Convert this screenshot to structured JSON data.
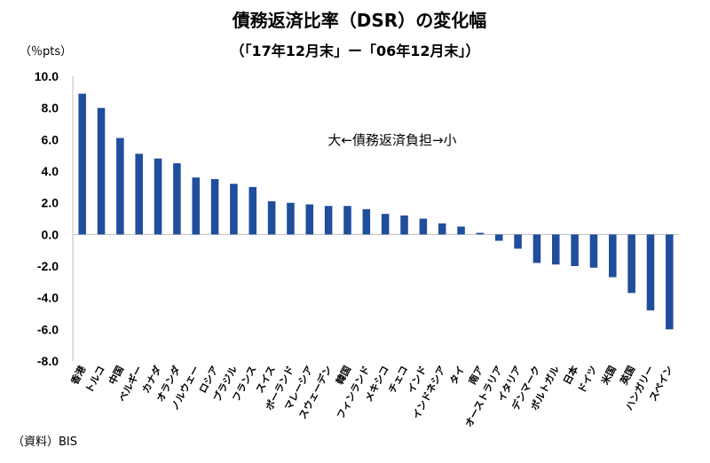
{
  "chart_data": {
    "type": "bar",
    "title": "債務返済比率（DSR）の変化幅",
    "subtitle": "（「17年12月末」ー「06年12月末」）",
    "unit_label": "（％pts）",
    "annotation": "大←債務返済負担→小",
    "source": "（資料）BIS",
    "ylim": [
      -8,
      10
    ],
    "yticks": [
      "10.0",
      "8.0",
      "6.0",
      "4.0",
      "2.0",
      "0.0",
      "-2.0",
      "-4.0",
      "-6.0",
      "-8.0"
    ],
    "grid": false,
    "bar_color": "#1f4e9c",
    "categories": [
      "香港",
      "トルコ",
      "中国",
      "ベルギー",
      "カナダ",
      "オランダ",
      "ノルウェー",
      "ロシア",
      "ブラジル",
      "フランス",
      "スイス",
      "ポーランド",
      "マレーシア",
      "スウェーデン",
      "韓国",
      "フィンランド",
      "メキシコ",
      "チェコ",
      "インド",
      "インドネシア",
      "タイ",
      "南ア",
      "オーストラリア",
      "イタリア",
      "デンマーク",
      "ポルトガル",
      "日本",
      "ドイツ",
      "米国",
      "英国",
      "ハンガリー",
      "スペイン"
    ],
    "values": [
      8.9,
      8.0,
      6.1,
      5.1,
      4.8,
      4.5,
      3.6,
      3.5,
      3.2,
      3.0,
      2.1,
      2.0,
      1.9,
      1.8,
      1.8,
      1.6,
      1.3,
      1.2,
      1.0,
      0.7,
      0.5,
      0.1,
      -0.4,
      -0.9,
      -1.8,
      -1.9,
      -2.0,
      -2.1,
      -2.7,
      -3.7,
      -4.8,
      -6.0
    ]
  }
}
